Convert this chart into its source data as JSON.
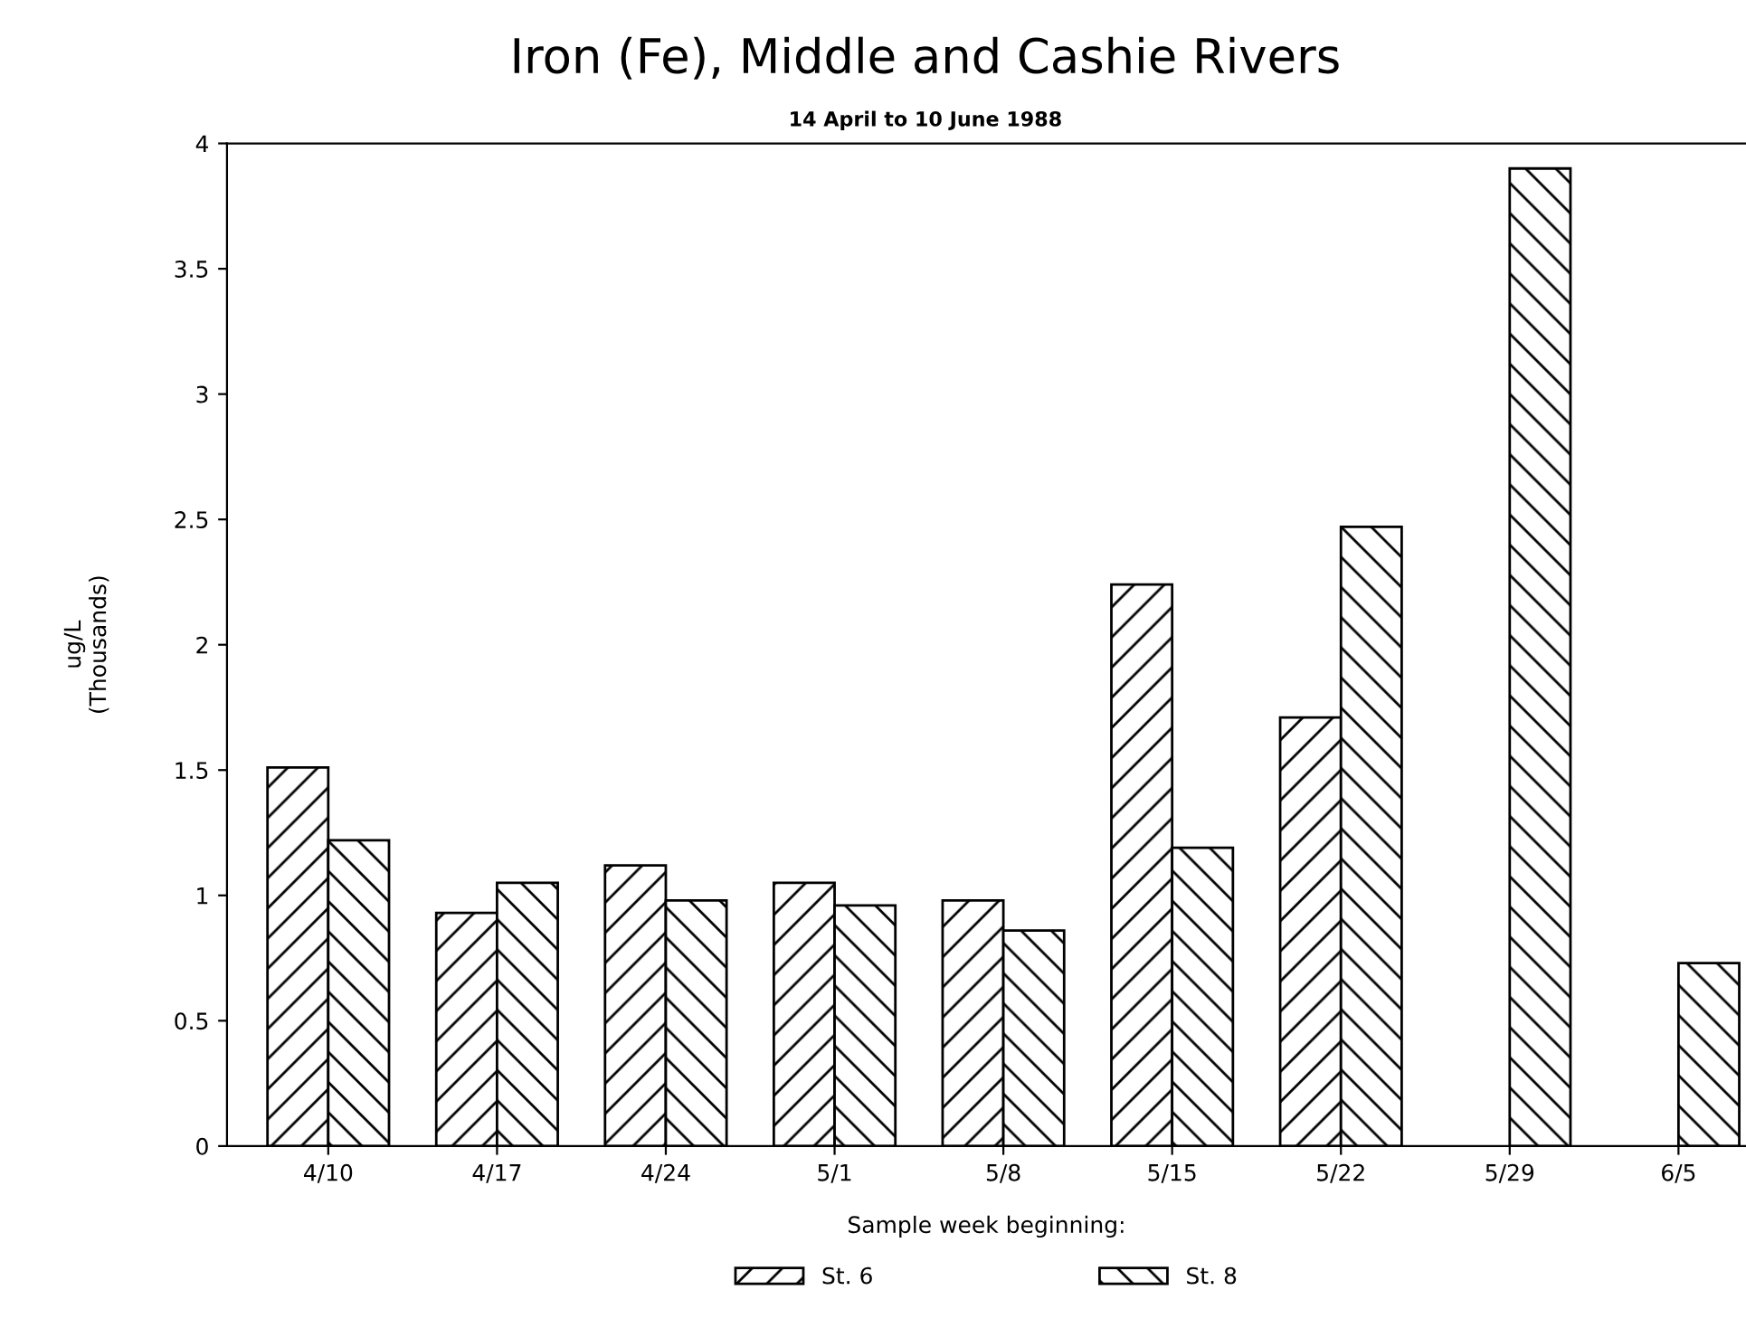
{
  "chart_data": {
    "type": "bar",
    "title": "Iron (Fe), Middle and Cashie Rivers",
    "subtitle": "14 April to 10 June 1988",
    "xlabel": "Sample week beginning:",
    "ylabel": "ug/L\n(Thousands)",
    "categories": [
      "4/10",
      "4/17",
      "4/24",
      "5/1",
      "5/8",
      "5/15",
      "5/22",
      "5/29",
      "6/5"
    ],
    "series": [
      {
        "name": "St. 6",
        "color": "#000000",
        "values": [
          1.51,
          0.93,
          1.12,
          1.05,
          0.98,
          2.24,
          1.71,
          null,
          null
        ]
      },
      {
        "name": "St. 8",
        "color": "#000000",
        "values": [
          1.22,
          1.05,
          0.98,
          0.96,
          0.86,
          1.19,
          2.47,
          3.9,
          0.73
        ]
      }
    ],
    "ylim": [
      0,
      4
    ],
    "yticks": [
      0,
      0.5,
      1,
      1.5,
      2,
      2.5,
      3,
      3.5,
      4
    ],
    "grid": false,
    "legend": "bottom"
  }
}
